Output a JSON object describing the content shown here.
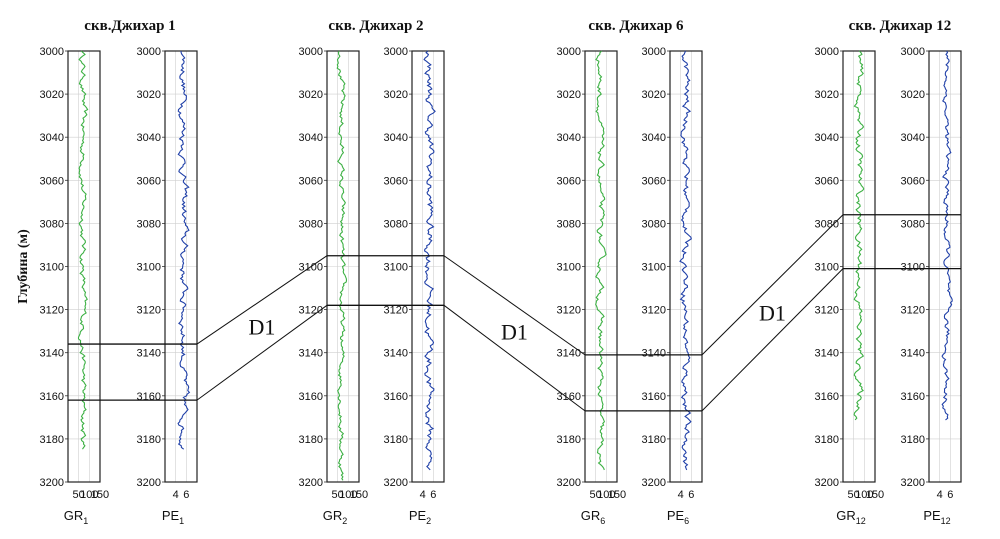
{
  "chart_data": {
    "type": "line",
    "ylabel": "Глубина (м)",
    "ylim": [
      3000,
      3200
    ],
    "y_ticks": [
      "3000",
      "3020",
      "3040",
      "3060",
      "3080",
      "3100",
      "3120",
      "3140",
      "3160",
      "3180",
      "3200"
    ],
    "grid": true,
    "wells": [
      {
        "title": "скв.Джихар 1",
        "tracks": [
          {
            "base": "GR",
            "sub": "1",
            "color": "#3cb043",
            "xlim": [
              0,
              150
            ],
            "xticks": [
              "50",
              "100",
              "150"
            ],
            "depth_range": [
              3000,
              3185
            ],
            "min": 40,
            "max": 100
          },
          {
            "base": "PE",
            "sub": "1",
            "color": "#2040a8",
            "xlim": [
              2,
              8
            ],
            "xticks": [
              "4",
              "6"
            ],
            "depth_range": [
              3000,
              3185
            ],
            "min": 4,
            "max": 7
          }
        ],
        "zone_top": 3136,
        "zone_base": 3162
      },
      {
        "title": "скв. Джихар 2",
        "tracks": [
          {
            "base": "GR",
            "sub": "2",
            "color": "#3cb043",
            "xlim": [
              0,
              150
            ],
            "xticks": [
              "50",
              "100",
              "150"
            ],
            "depth_range": [
              3000,
              3200
            ],
            "min": 40,
            "max": 95
          },
          {
            "base": "PE",
            "sub": "2",
            "color": "#2040a8",
            "xlim": [
              2,
              8
            ],
            "xticks": [
              "4",
              "6"
            ],
            "depth_range": [
              3000,
              3195
            ],
            "min": 3.5,
            "max": 7
          }
        ],
        "zone_top": 3095,
        "zone_base": 3118
      },
      {
        "title": "скв. Джихар 6",
        "tracks": [
          {
            "base": "GR",
            "sub": "6",
            "color": "#3cb043",
            "xlim": [
              0,
              150
            ],
            "xticks": [
              "50",
              "100",
              "150"
            ],
            "depth_range": [
              3000,
              3195
            ],
            "min": 40,
            "max": 100
          },
          {
            "base": "PE",
            "sub": "6",
            "color": "#2040a8",
            "xlim": [
              2,
              8
            ],
            "xticks": [
              "4",
              "6"
            ],
            "depth_range": [
              3000,
              3195
            ],
            "min": 3.5,
            "max": 6.5
          }
        ],
        "zone_top": 3141,
        "zone_base": 3167
      },
      {
        "title": "скв. Джихар 12",
        "tracks": [
          {
            "base": "GR",
            "sub": "12",
            "color": "#3cb043",
            "xlim": [
              0,
              150
            ],
            "xticks": [
              "50",
              "100",
              "150"
            ],
            "depth_range": [
              3000,
              3172
            ],
            "min": 40,
            "max": 110
          },
          {
            "base": "PE",
            "sub": "12",
            "color": "#2040a8",
            "xlim": [
              2,
              8
            ],
            "xticks": [
              "4",
              "6"
            ],
            "depth_range": [
              3000,
              3172
            ],
            "min": 4,
            "max": 6.5
          }
        ],
        "zone_top": 3076,
        "zone_base": 3101
      }
    ],
    "zone_labels": [
      "D1",
      "D1",
      "D1"
    ]
  }
}
